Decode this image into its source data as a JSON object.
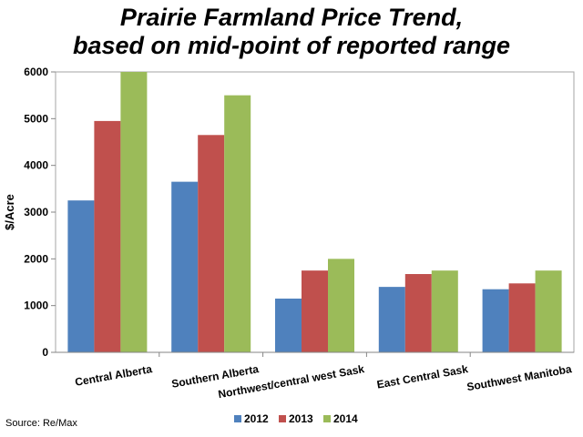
{
  "chart_data": {
    "type": "bar",
    "title_line1": "Prairie Farmland Price Trend,",
    "title_line2": "based on mid-point of reported range",
    "ylabel": "$/Acre",
    "xlabel": "",
    "categories": [
      "Central Alberta",
      "Southern Alberta",
      "Northwest/central west Sask",
      "East Central Sask",
      "Southwest Manitoba"
    ],
    "series": [
      {
        "name": "2012",
        "color": "#4f81bd",
        "values": [
          3250,
          3650,
          1150,
          1400,
          1350
        ]
      },
      {
        "name": "2013",
        "color": "#c0504d",
        "values": [
          4950,
          4650,
          1750,
          1675,
          1475
        ]
      },
      {
        "name": "2014",
        "color": "#9bbb59",
        "values": [
          6000,
          5500,
          2000,
          1750,
          1750
        ]
      }
    ],
    "ylim": [
      0,
      6000
    ],
    "yticks": [
      0,
      1000,
      2000,
      3000,
      4000,
      5000,
      6000
    ],
    "grid": false,
    "legend_position": "bottom"
  },
  "source": "Source: Re/Max"
}
